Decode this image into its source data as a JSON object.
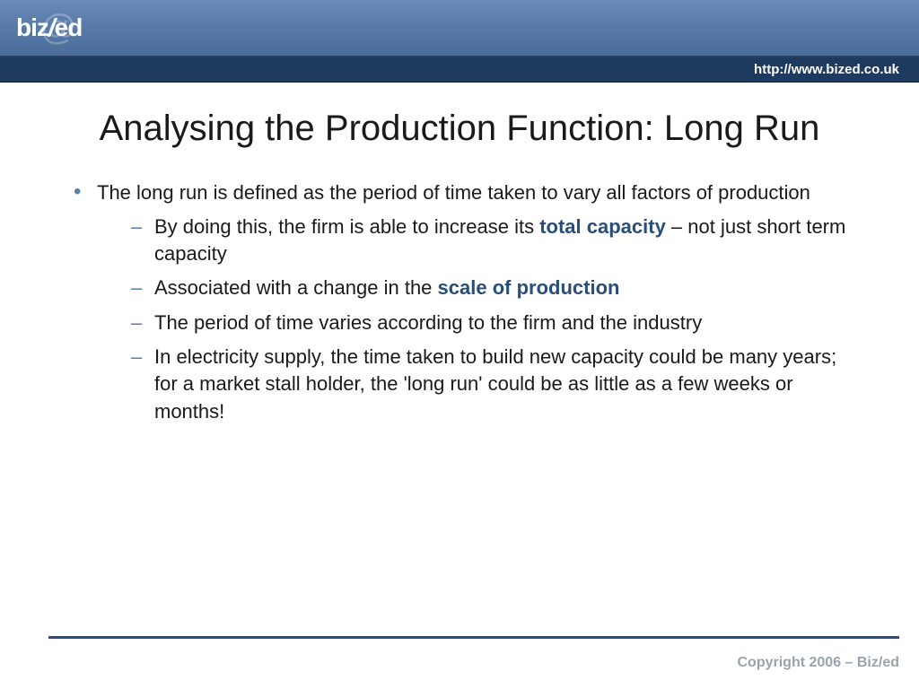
{
  "header": {
    "logo_biz": "biz",
    "logo_slash": "/",
    "logo_ed": "ed",
    "logo_at": "@",
    "url": "http://www.biz­ed.co.uk"
  },
  "title": "Analysing the Production Function: Long Run",
  "bullet": {
    "main": "The long run is defined as the period of time taken to vary all factors of production",
    "sub1_a": "By doing this, the firm is able to increase its ",
    "sub1_kw": "total capacity",
    "sub1_b": " – not just short term capacity",
    "sub2_a": "Associated with a change in the ",
    "sub2_kw": "scale of production",
    "sub3": "The period of time varies according to the firm and the industry",
    "sub4": "In electricity supply, the time taken to build new capacity could be many years; for a market stall holder, the 'long run' could be as little as a few weeks or months!"
  },
  "footer": {
    "copyright": "Copyright 2006 – Biz/ed"
  },
  "style": {
    "header_gradient_top": "#6b8bb8",
    "header_gradient_bottom": "#4a6d9a",
    "url_bar_bg": "#1e3a5f",
    "bullet_color": "#5a7dab",
    "keyword_color": "#2a4e7a",
    "footer_line_color": "#2a4e7a",
    "copyright_color": "#9aa3ad",
    "title_fontsize": 40,
    "body_fontsize": 22,
    "slide_width": 1024,
    "slide_height": 768
  }
}
